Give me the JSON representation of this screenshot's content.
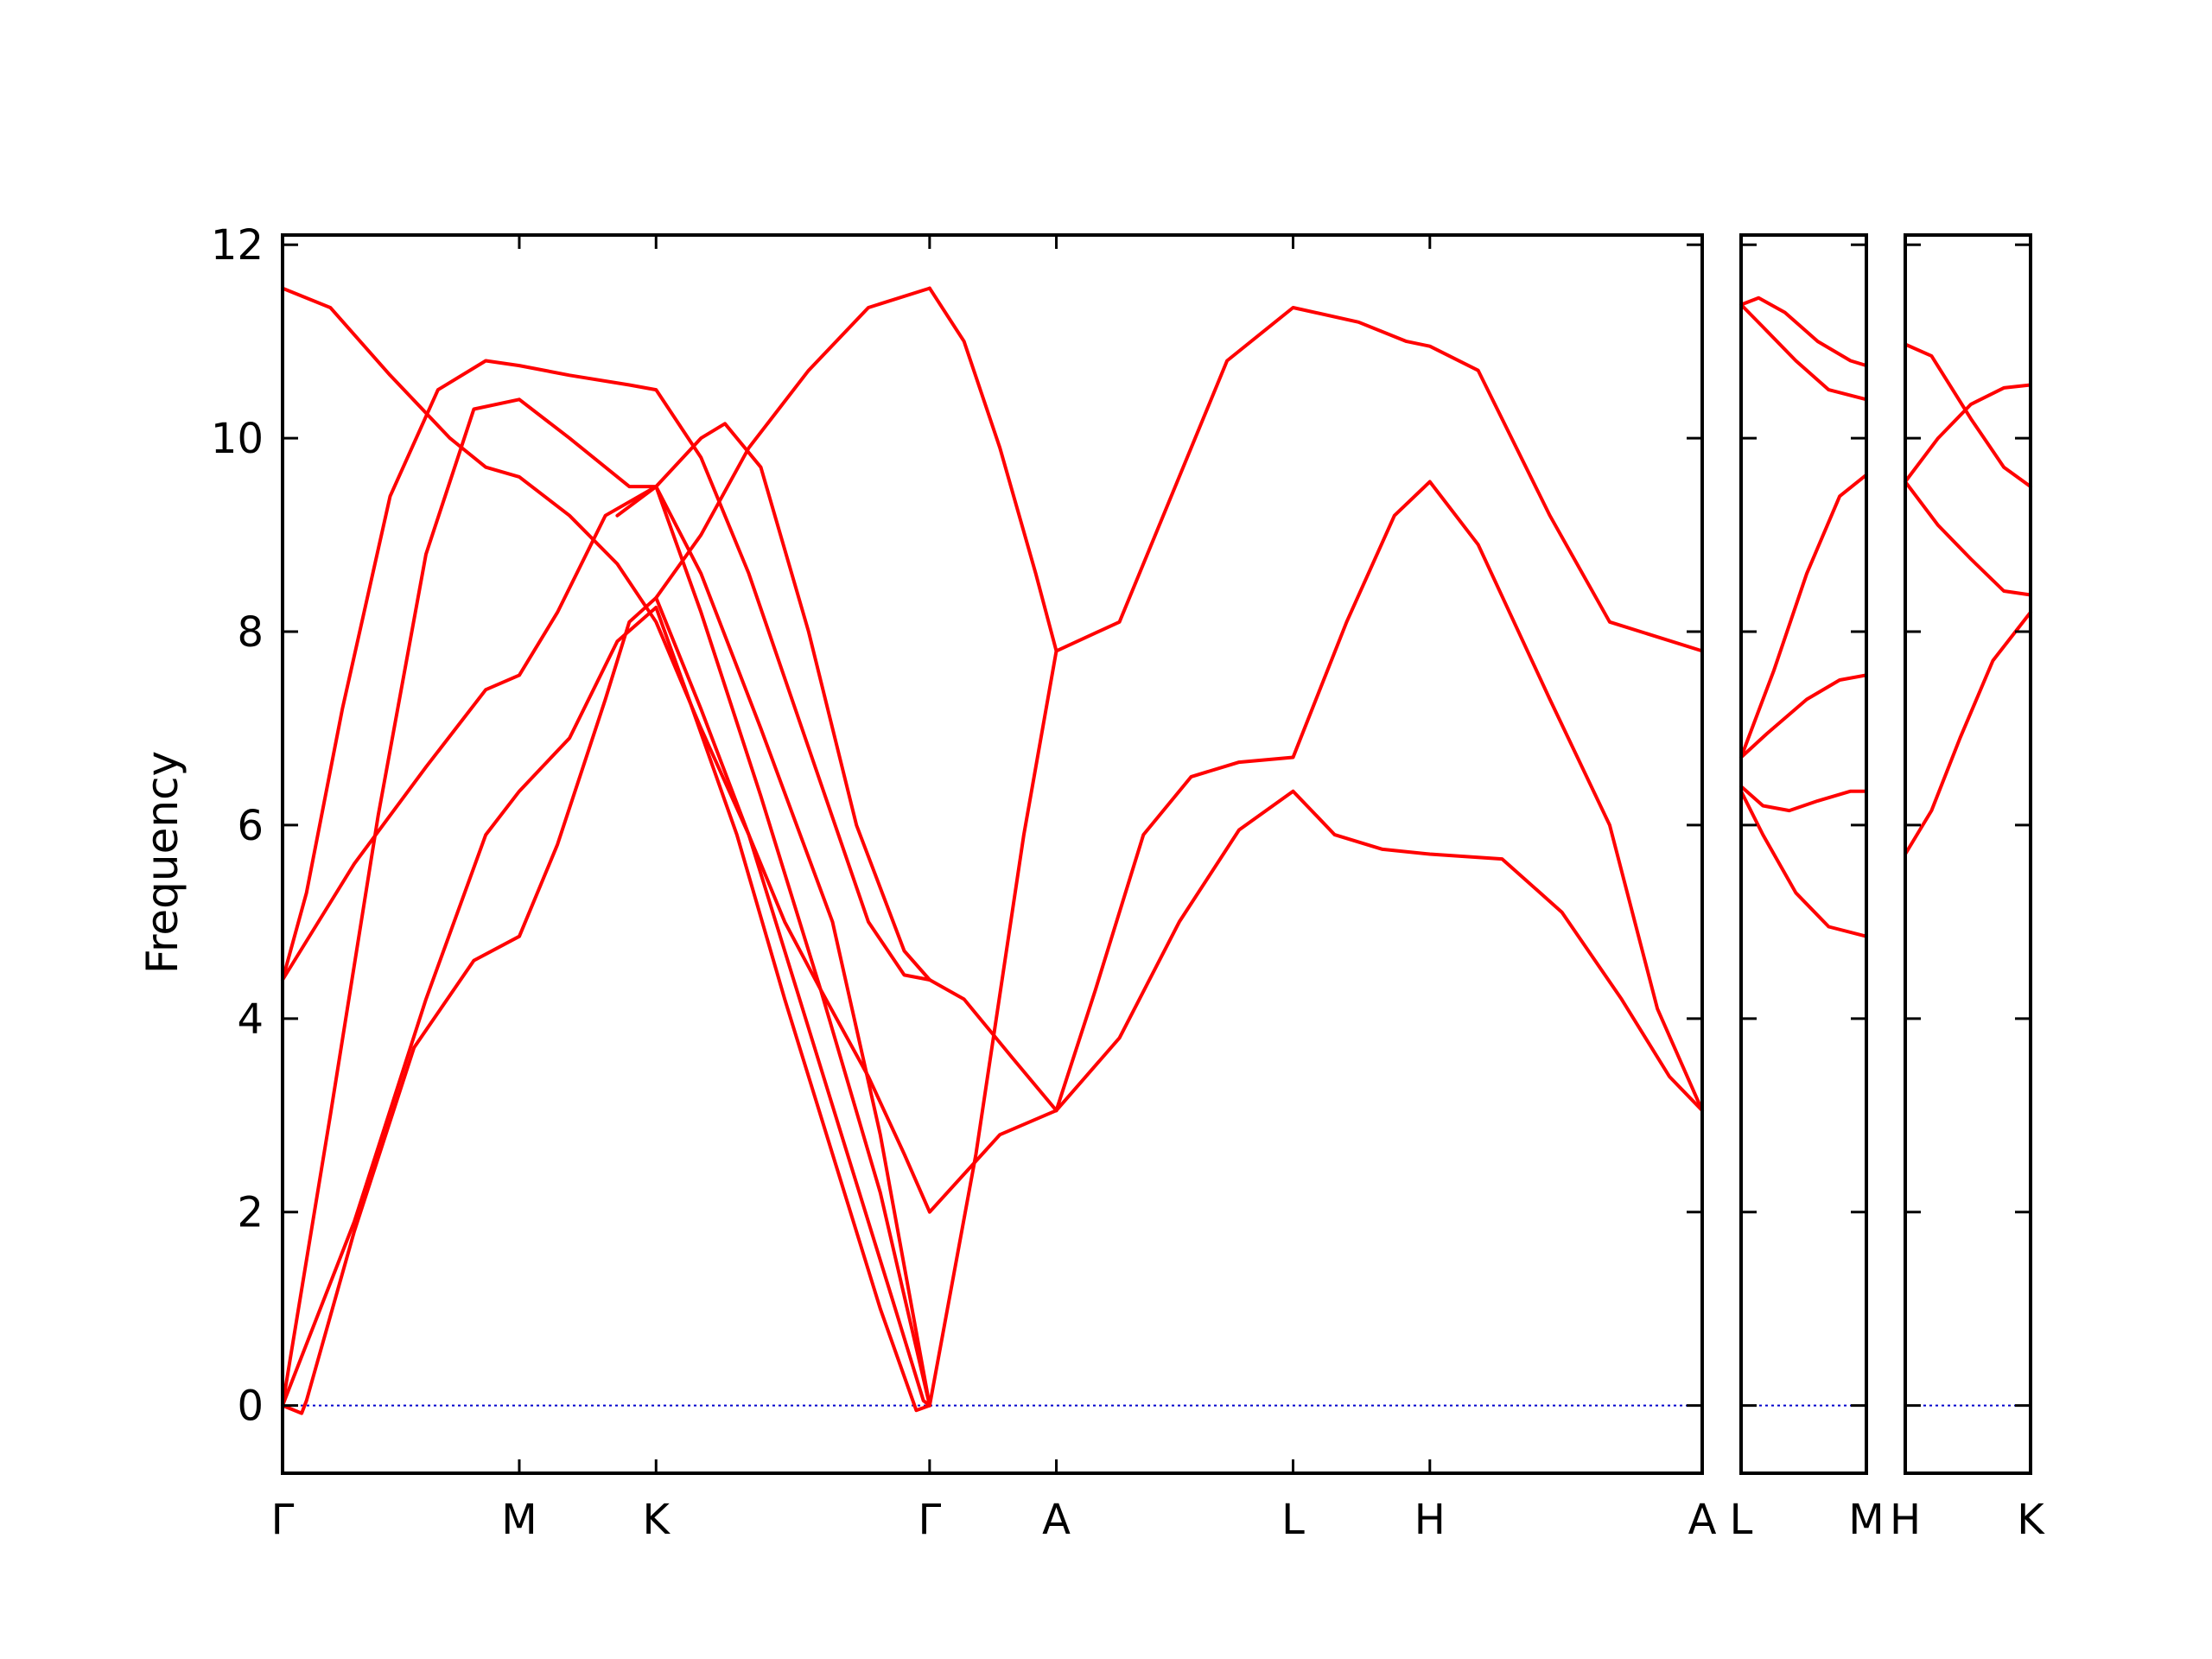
{
  "chart_data": {
    "type": "line",
    "title": "",
    "xlabel": "",
    "ylabel": "Frequency",
    "ylim": [
      -0.7,
      12.1
    ],
    "yticks": [
      0,
      2,
      4,
      6,
      8,
      10,
      12
    ],
    "ytick_labels": [
      "0",
      "2",
      "4",
      "6",
      "8",
      "10",
      "12"
    ],
    "grid": false,
    "legend": "none",
    "colors": {
      "bands": "#ff0000",
      "zero_line": "#0000cc",
      "axes": "#000000"
    },
    "panels": [
      {
        "x_range": [
          0,
          5.937
        ],
        "ticks": [
          {
            "x": 0.0,
            "label": "Γ"
          },
          {
            "x": 0.99,
            "label": "M"
          },
          {
            "x": 1.562,
            "label": "K"
          },
          {
            "x": 2.706,
            "label": "Γ"
          },
          {
            "x": 3.236,
            "label": "A"
          },
          {
            "x": 4.226,
            "label": "L"
          },
          {
            "x": 4.798,
            "label": "H"
          },
          {
            "x": 5.937,
            "label": "A"
          }
        ],
        "tick_labels": [
          "Γ",
          "M",
          "K",
          "Γ",
          "A",
          "L",
          "H",
          "A"
        ],
        "bands": [
          [
            [
              0,
              0
            ],
            [
              0.08,
              -0.08
            ],
            [
              0.1,
              0.05
            ],
            [
              0.3,
              1.8
            ],
            [
              0.55,
              3.7
            ],
            [
              0.8,
              4.6
            ],
            [
              0.99,
              4.85
            ],
            [
              1.15,
              5.8
            ],
            [
              1.35,
              7.3
            ],
            [
              1.45,
              8.1
            ],
            [
              1.562,
              8.35
            ],
            [
              1.75,
              7.2
            ],
            [
              1.95,
              5.9
            ],
            [
              2.15,
              4.3
            ],
            [
              2.35,
              2.7
            ],
            [
              2.55,
              1.1
            ],
            [
              2.68,
              0.05
            ],
            [
              2.706,
              0
            ]
          ],
          [
            [
              0,
              0
            ],
            [
              0.3,
              1.9
            ],
            [
              0.6,
              4.2
            ],
            [
              0.85,
              5.9
            ],
            [
              0.99,
              6.35
            ],
            [
              1.2,
              6.9
            ],
            [
              1.4,
              7.9
            ],
            [
              1.562,
              8.25
            ],
            [
              1.7,
              7.3
            ],
            [
              1.9,
              5.9
            ],
            [
              2.1,
              4.2
            ],
            [
              2.3,
              2.6
            ],
            [
              2.5,
              1.0
            ],
            [
              2.65,
              -0.05
            ],
            [
              2.706,
              0
            ]
          ],
          [
            [
              0,
              0
            ],
            [
              0.2,
              3.0
            ],
            [
              0.4,
              6.1
            ],
            [
              0.6,
              8.8
            ],
            [
              0.8,
              10.3
            ],
            [
              0.99,
              10.4
            ],
            [
              1.2,
              10.0
            ],
            [
              1.45,
              9.5
            ],
            [
              1.562,
              9.5
            ],
            [
              1.75,
              8.2
            ],
            [
              2.0,
              6.3
            ],
            [
              2.25,
              4.3
            ],
            [
              2.5,
              2.2
            ],
            [
              2.706,
              0
            ]
          ],
          [
            [
              0,
              4.4
            ],
            [
              0.3,
              5.6
            ],
            [
              0.6,
              6.6
            ],
            [
              0.85,
              7.4
            ],
            [
              0.99,
              7.55
            ],
            [
              1.15,
              8.2
            ],
            [
              1.35,
              9.2
            ],
            [
              1.562,
              9.5
            ],
            [
              1.75,
              8.6
            ],
            [
              2.0,
              7.0
            ],
            [
              2.3,
              5.0
            ],
            [
              2.5,
              2.8
            ],
            [
              2.706,
              0
            ]
          ],
          [
            [
              0,
              4.4
            ],
            [
              0.1,
              5.3
            ],
            [
              0.25,
              7.2
            ],
            [
              0.45,
              9.4
            ],
            [
              0.65,
              10.5
            ],
            [
              0.85,
              10.8
            ],
            [
              0.99,
              10.75
            ],
            [
              1.2,
              10.65
            ],
            [
              1.45,
              10.55
            ],
            [
              1.562,
              10.5
            ],
            [
              1.75,
              9.8
            ],
            [
              1.95,
              8.6
            ],
            [
              2.2,
              6.8
            ],
            [
              2.45,
              5.0
            ],
            [
              2.6,
              4.45
            ],
            [
              2.706,
              4.4
            ]
          ],
          [
            [
              0,
              11.55
            ],
            [
              0.2,
              11.35
            ],
            [
              0.45,
              10.65
            ],
            [
              0.7,
              10.0
            ],
            [
              0.85,
              9.7
            ],
            [
              0.99,
              9.6
            ],
            [
              1.2,
              9.2
            ],
            [
              1.4,
              8.7
            ],
            [
              1.562,
              8.1
            ],
            [
              1.75,
              7.0
            ],
            [
              1.95,
              5.9
            ],
            [
              2.1,
              5.0
            ],
            [
              2.25,
              4.3
            ],
            [
              2.45,
              3.4
            ],
            [
              2.6,
              2.6
            ],
            [
              2.706,
              2.0
            ],
            [
              3.0,
              2.8
            ],
            [
              3.236,
              3.05
            ]
          ],
          [
            [
              2.706,
              4.4
            ],
            [
              2.85,
              4.2
            ],
            [
              3.05,
              3.6
            ],
            [
              3.236,
              3.05
            ]
          ],
          [
            [
              1.4,
              9.2
            ],
            [
              1.562,
              9.5
            ],
            [
              1.75,
              10.0
            ],
            [
              1.85,
              10.15
            ],
            [
              2.0,
              9.7
            ],
            [
              2.2,
              8.0
            ],
            [
              2.4,
              6.0
            ],
            [
              2.6,
              4.7
            ],
            [
              2.706,
              4.4
            ]
          ],
          [
            [
              1.562,
              8.35
            ],
            [
              1.75,
              9.0
            ],
            [
              1.95,
              9.9
            ],
            [
              2.2,
              10.7
            ],
            [
              2.45,
              11.35
            ],
            [
              2.706,
              11.55
            ]
          ],
          [
            [
              2.706,
              11.55
            ],
            [
              2.85,
              11.0
            ],
            [
              3.0,
              9.9
            ],
            [
              3.15,
              8.6
            ],
            [
              3.236,
              7.8
            ]
          ],
          [
            [
              2.706,
              0
            ],
            [
              2.9,
              2.6
            ],
            [
              3.1,
              5.9
            ],
            [
              3.236,
              7.8
            ]
          ],
          [
            [
              3.236,
              7.8
            ],
            [
              3.5,
              8.1
            ],
            [
              3.7,
              9.3
            ],
            [
              3.95,
              10.8
            ],
            [
              4.226,
              11.35
            ],
            [
              4.5,
              11.2
            ],
            [
              4.7,
              11.0
            ],
            [
              4.798,
              10.95
            ],
            [
              5.0,
              10.7
            ],
            [
              5.3,
              9.2
            ],
            [
              5.55,
              8.1
            ],
            [
              5.937,
              7.8
            ]
          ],
          [
            [
              3.236,
              3.05
            ],
            [
              3.4,
              4.3
            ],
            [
              3.6,
              5.9
            ],
            [
              3.8,
              6.5
            ],
            [
              4.0,
              6.65
            ],
            [
              4.226,
              6.7
            ],
            [
              4.45,
              8.1
            ],
            [
              4.65,
              9.2
            ],
            [
              4.798,
              9.55
            ],
            [
              5.0,
              8.9
            ],
            [
              5.3,
              7.3
            ],
            [
              5.55,
              6.0
            ],
            [
              5.75,
              4.1
            ],
            [
              5.937,
              3.05
            ]
          ],
          [
            [
              3.236,
              3.05
            ],
            [
              3.5,
              3.8
            ],
            [
              3.75,
              5.0
            ],
            [
              4.0,
              5.95
            ],
            [
              4.226,
              6.35
            ],
            [
              4.4,
              5.9
            ],
            [
              4.6,
              5.75
            ],
            [
              4.798,
              5.7
            ],
            [
              5.1,
              5.65
            ],
            [
              5.35,
              5.1
            ],
            [
              5.6,
              4.2
            ],
            [
              5.8,
              3.4
            ],
            [
              5.937,
              3.05
            ]
          ]
        ]
      },
      {
        "x_range": [
          0,
          0.572
        ],
        "ticks": [
          {
            "x": 0.0,
            "label": "L"
          },
          {
            "x": 0.572,
            "label": "M"
          }
        ],
        "tick_labels": [
          "L",
          "M"
        ],
        "bands": [
          [
            [
              0,
              11.38
            ],
            [
              0.08,
              11.45
            ],
            [
              0.2,
              11.3
            ],
            [
              0.35,
              11.0
            ],
            [
              0.5,
              10.8
            ],
            [
              0.572,
              10.75
            ]
          ],
          [
            [
              0,
              11.38
            ],
            [
              0.1,
              11.15
            ],
            [
              0.25,
              10.8
            ],
            [
              0.4,
              10.5
            ],
            [
              0.572,
              10.4
            ]
          ],
          [
            [
              0,
              6.7
            ],
            [
              0.15,
              7.6
            ],
            [
              0.3,
              8.6
            ],
            [
              0.45,
              9.4
            ],
            [
              0.572,
              9.62
            ]
          ],
          [
            [
              0,
              6.7
            ],
            [
              0.12,
              6.95
            ],
            [
              0.3,
              7.3
            ],
            [
              0.45,
              7.5
            ],
            [
              0.572,
              7.55
            ]
          ],
          [
            [
              0,
              6.4
            ],
            [
              0.1,
              6.2
            ],
            [
              0.22,
              6.15
            ],
            [
              0.35,
              6.25
            ],
            [
              0.5,
              6.35
            ],
            [
              0.572,
              6.35
            ]
          ],
          [
            [
              0,
              6.35
            ],
            [
              0.1,
              5.9
            ],
            [
              0.25,
              5.3
            ],
            [
              0.4,
              4.95
            ],
            [
              0.572,
              4.85
            ]
          ]
        ]
      },
      {
        "x_range": [
          0,
          0.572
        ],
        "ticks": [
          {
            "x": 0.0,
            "label": "H"
          },
          {
            "x": 0.572,
            "label": "K"
          }
        ],
        "tick_labels": [
          "H",
          "K"
        ],
        "bands": [
          [
            [
              0,
              10.97
            ],
            [
              0.12,
              10.85
            ],
            [
              0.3,
              10.2
            ],
            [
              0.45,
              9.7
            ],
            [
              0.572,
              9.5
            ]
          ],
          [
            [
              0,
              9.55
            ],
            [
              0.15,
              10.0
            ],
            [
              0.3,
              10.35
            ],
            [
              0.45,
              10.52
            ],
            [
              0.572,
              10.55
            ]
          ],
          [
            [
              0,
              9.55
            ],
            [
              0.15,
              9.1
            ],
            [
              0.3,
              8.75
            ],
            [
              0.45,
              8.42
            ],
            [
              0.572,
              8.38
            ]
          ],
          [
            [
              0,
              5.7
            ],
            [
              0.12,
              6.15
            ],
            [
              0.25,
              6.9
            ],
            [
              0.4,
              7.7
            ],
            [
              0.572,
              8.2
            ]
          ]
        ]
      }
    ]
  }
}
